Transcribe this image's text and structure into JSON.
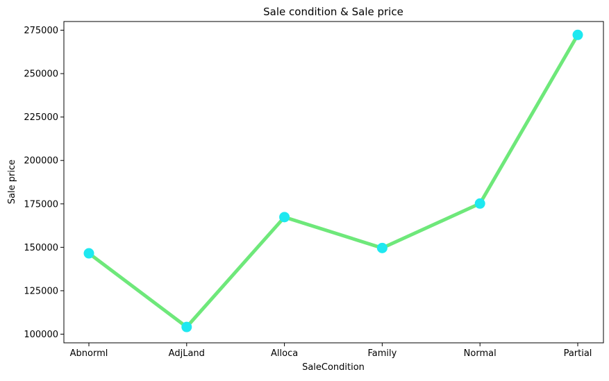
{
  "chart_data": {
    "type": "line",
    "title": "Sale condition & Sale price",
    "xlabel": "SaleCondition",
    "ylabel": "Sale price",
    "categories": [
      "Abnorml",
      "AdjLand",
      "Alloca",
      "Family",
      "Normal",
      "Partial"
    ],
    "series": [
      {
        "values": [
          146526,
          104125,
          167377,
          149600,
          175202,
          272292
        ]
      }
    ],
    "yticks": [
      100000,
      125000,
      150000,
      175000,
      200000,
      225000,
      250000,
      275000
    ],
    "ytick_labels": [
      "100000",
      "125000",
      "150000",
      "175000",
      "200000",
      "225000",
      "250000",
      "275000"
    ],
    "ylim": [
      95000,
      280000
    ],
    "grid": false,
    "line_color": "#6ee87a",
    "marker_color": "#1ee8f0"
  }
}
